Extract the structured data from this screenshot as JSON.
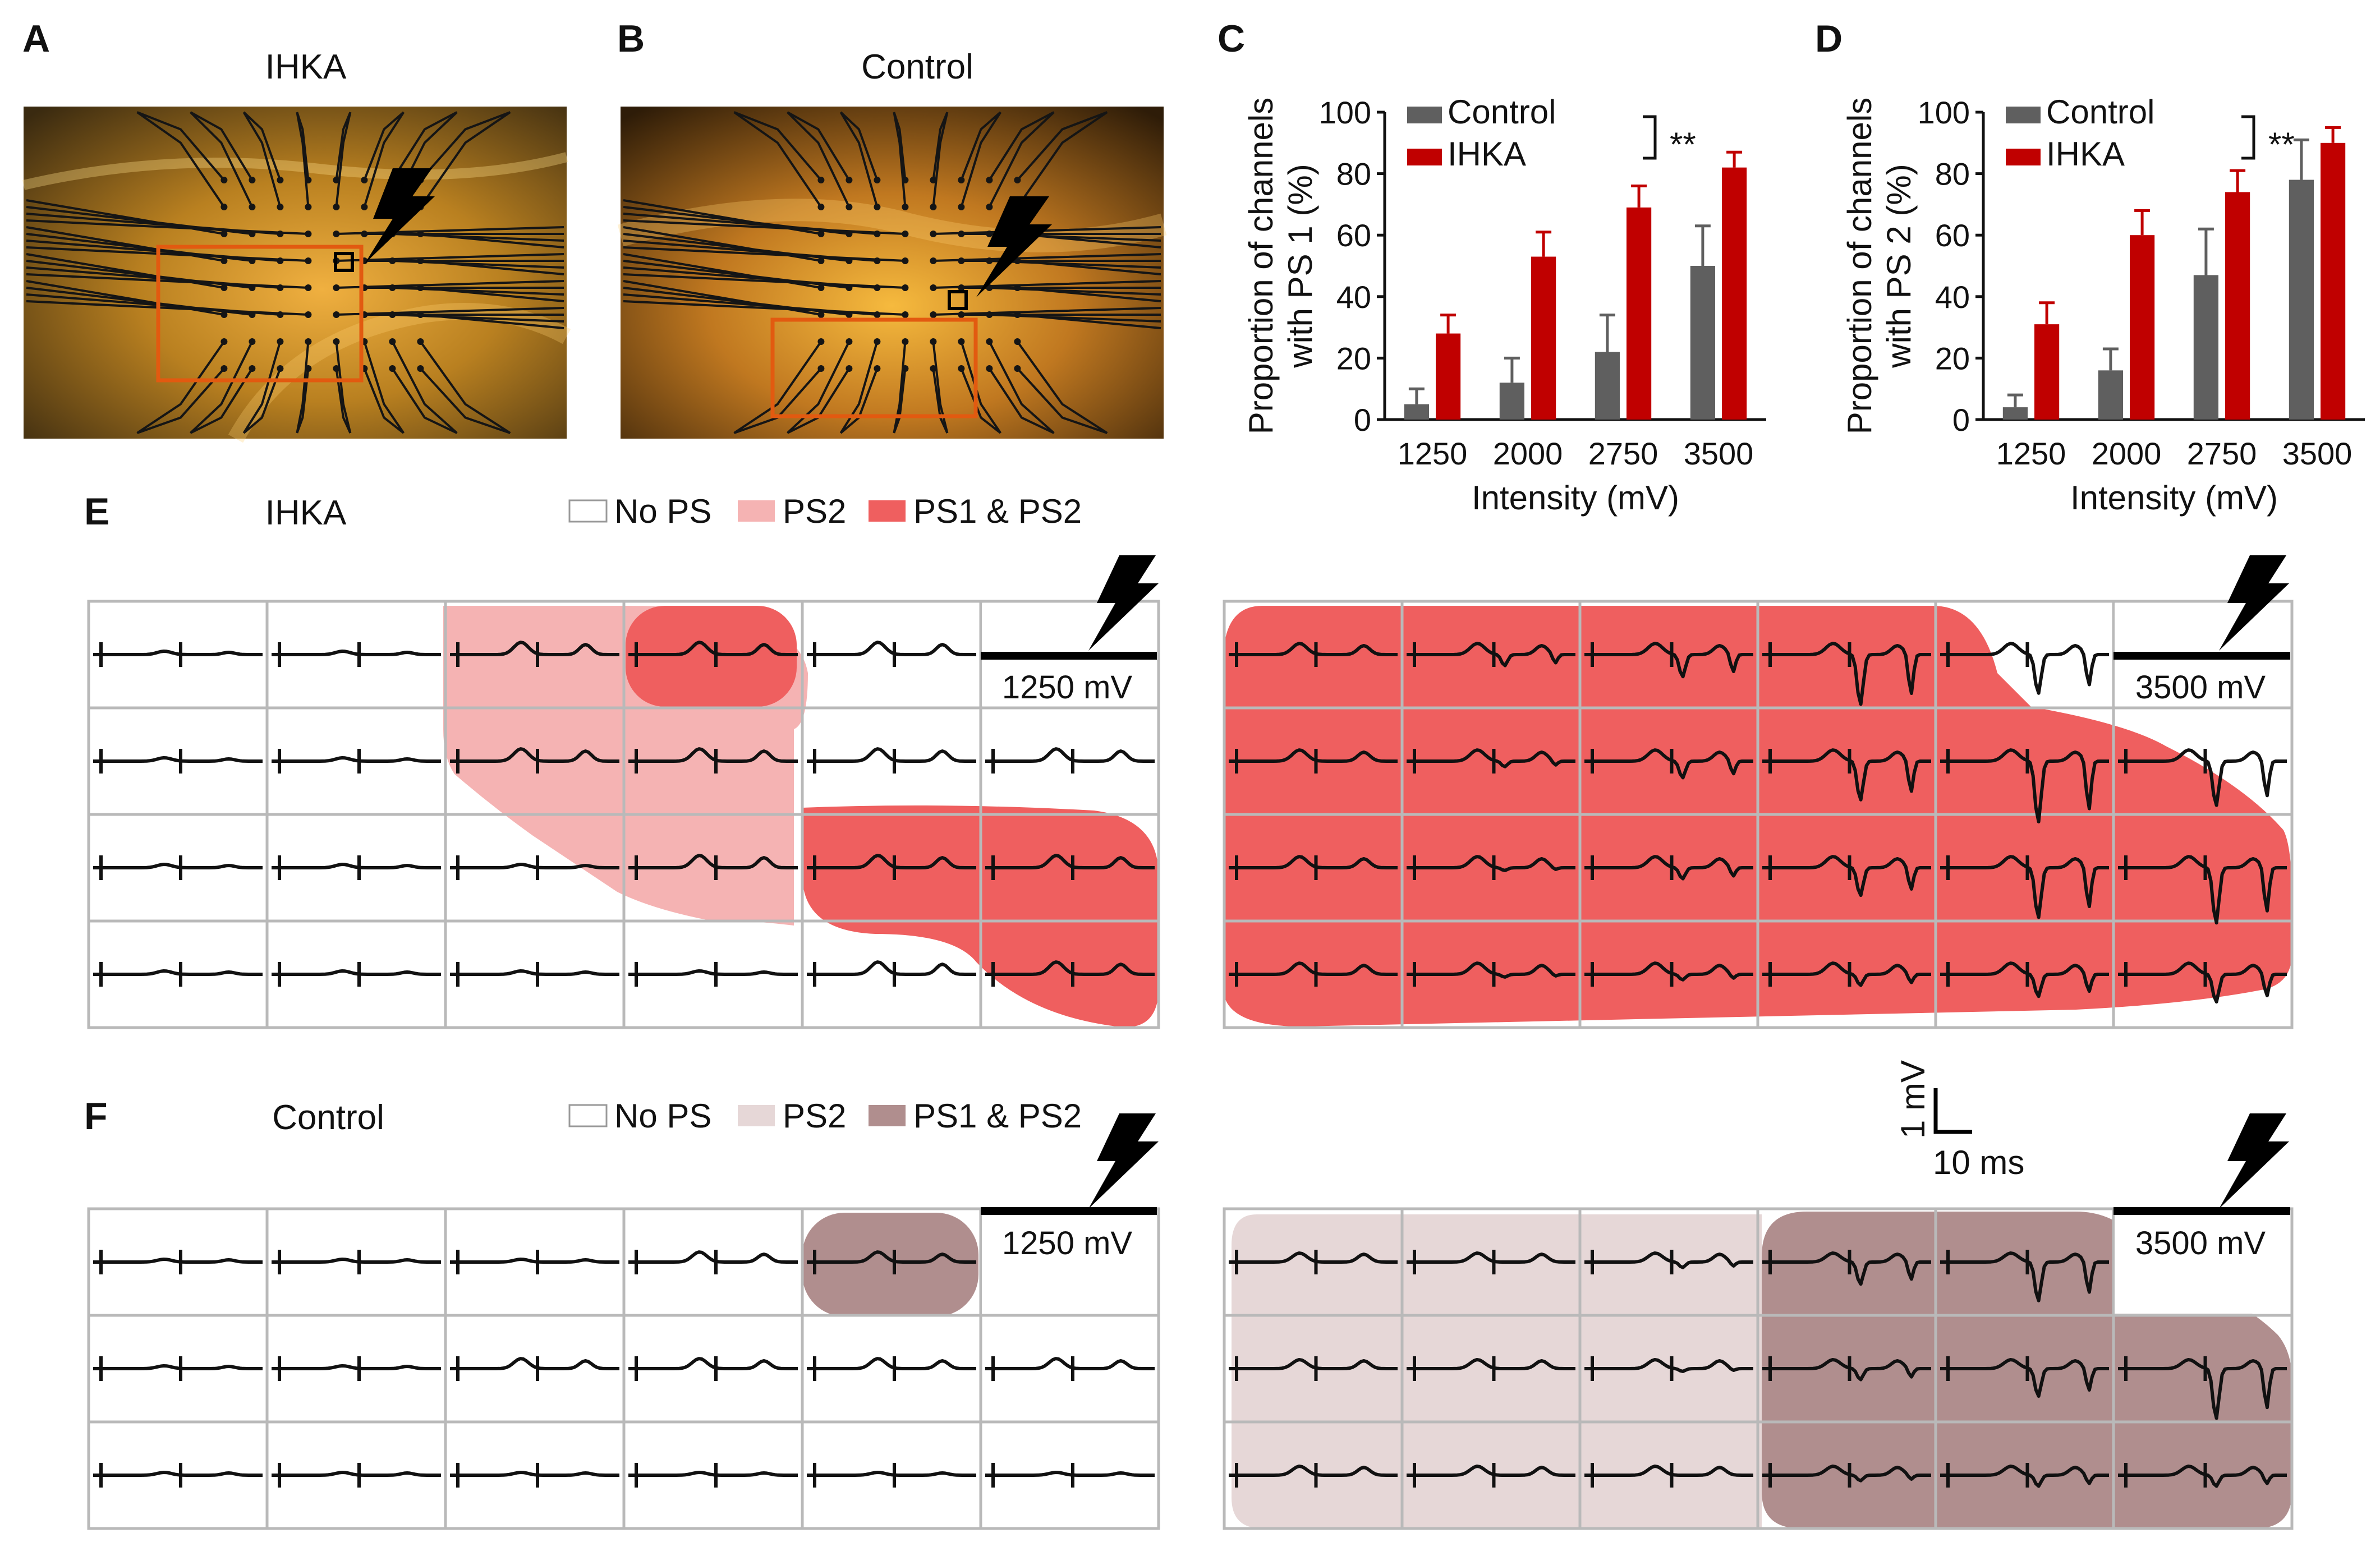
{
  "panels": {
    "A": {
      "letter": "A",
      "title": "IHKA"
    },
    "B": {
      "letter": "B",
      "title": "Control"
    },
    "C": {
      "letter": "C"
    },
    "D": {
      "letter": "D"
    },
    "E": {
      "letter": "E",
      "title": "IHKA"
    },
    "F": {
      "letter": "F",
      "title": "Control"
    }
  },
  "legendE": {
    "items": [
      "No PS",
      "PS2",
      "PS1 & PS2"
    ]
  },
  "legendF": {
    "items": [
      "No PS",
      "PS2",
      "PS1 & PS2"
    ]
  },
  "stimulus": {
    "low": "1250 mV",
    "high": "3500 mV"
  },
  "scalebar": {
    "vertical": "1 mV",
    "horizontal": "10 ms"
  },
  "colors": {
    "control_bar": "#5f5f5f",
    "ihka_bar": "#c00000",
    "ihka_ps2": "#f5b3b3",
    "ihka_ps1ps2": "#ef5f5f",
    "control_ps2": "#e6d7d7",
    "control_ps1ps2": "#b08e8e",
    "grid": "#b9b9b9",
    "photo_box": "#e25a10"
  },
  "chart_data": [
    {
      "type": "bar",
      "panel": "C",
      "ylabel_lines": [
        "Proportion of channels",
        "with  PS 1 (%)"
      ],
      "xlabel": "Intensity (mV)",
      "categories": [
        "1250",
        "2000",
        "2750",
        "3500"
      ],
      "ylim": [
        0,
        100
      ],
      "yticks": [
        0,
        20,
        40,
        60,
        80,
        100
      ],
      "series": [
        {
          "name": "Control",
          "values": [
            5,
            12,
            22,
            50
          ],
          "errors": [
            5,
            8,
            12,
            13
          ]
        },
        {
          "name": "IHKA",
          "values": [
            28,
            53,
            69,
            82
          ],
          "errors": [
            6,
            8,
            7,
            5
          ]
        }
      ],
      "significance": "**"
    },
    {
      "type": "bar",
      "panel": "D",
      "ylabel_lines": [
        "Proportion of channels",
        "with PS 2 (%)"
      ],
      "xlabel": "Intensity (mV)",
      "categories": [
        "1250",
        "2000",
        "2750",
        "3500"
      ],
      "ylim": [
        0,
        100
      ],
      "yticks": [
        0,
        20,
        40,
        60,
        80,
        100
      ],
      "series": [
        {
          "name": "Control",
          "values": [
            4,
            16,
            47,
            78
          ],
          "errors": [
            4,
            7,
            15,
            13
          ]
        },
        {
          "name": "IHKA",
          "values": [
            31,
            60,
            74,
            90
          ],
          "errors": [
            7,
            8,
            7,
            5
          ]
        }
      ],
      "significance": "**"
    }
  ]
}
